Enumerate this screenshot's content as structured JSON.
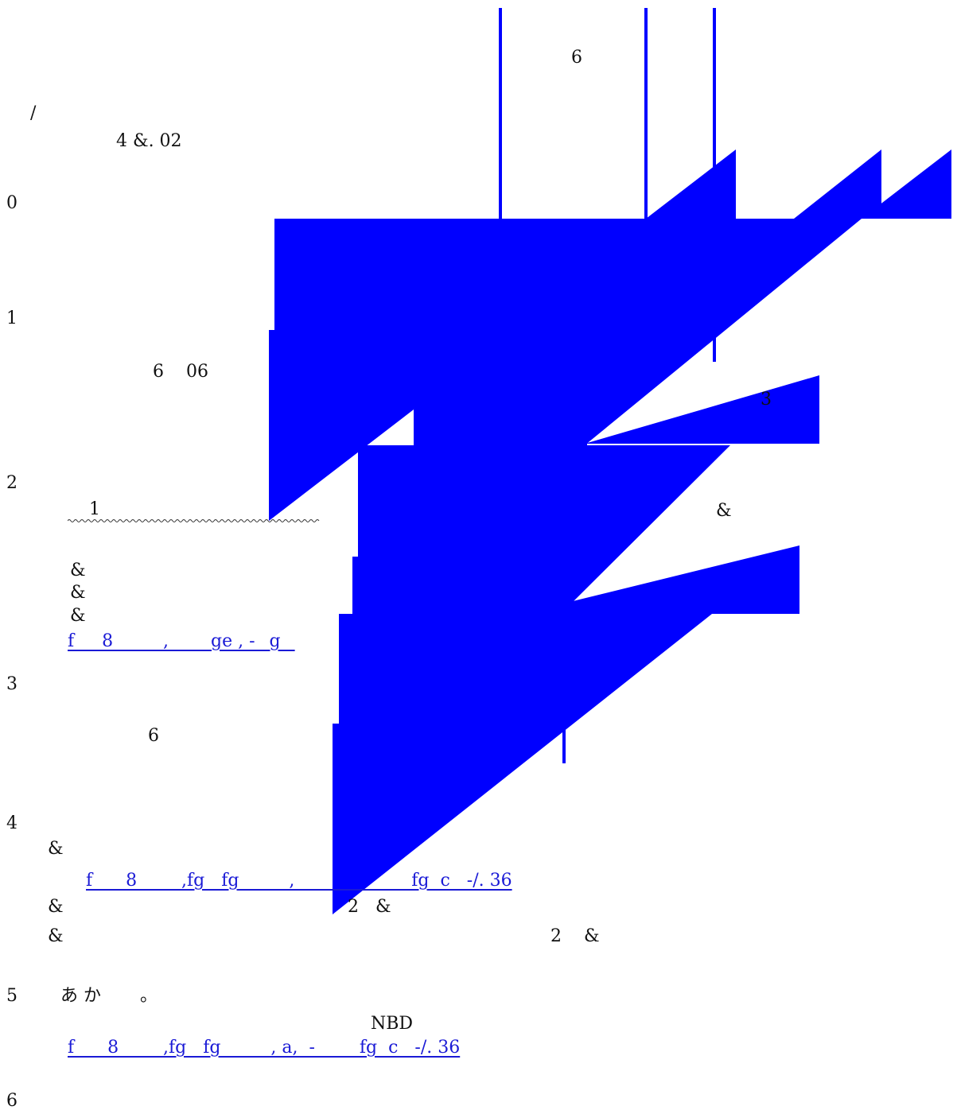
{
  "colors": {
    "shape_fill": "#0000ff",
    "link": "#1a1ad6",
    "text": "#111111",
    "background": "#ffffff"
  },
  "labels": {
    "top_6": "6",
    "slash": "/",
    "title_code": "4 &. 02",
    "marker_0": "0",
    "marker_1": "1",
    "mid_6_06": "6    06",
    "right_3": "3",
    "marker_2": "2",
    "squiggle_1": "1",
    "right_amp": "&",
    "amp_a": "&",
    "amp_b": "&",
    "amp_c": "&",
    "marker_3": "3",
    "sub_6": "6",
    "marker_4": "4",
    "amp_d": "&",
    "amp_e": "&",
    "pair_2_amp": "2   &",
    "amp_f": "&",
    "pair_2_amp_right": "2    &",
    "marker_5": "5",
    "kana": "あ か       。",
    "nbd": "NBD",
    "marker_6": "6"
  },
  "links": {
    "link_1": "f     8         ,      _ge , - _g _",
    "link_2": "f      8        ,fg   fg         ,                     fg  c   -/. 36",
    "link_3": "f      8        ,fg   fg         , a,  -        fg  c   -/. 36"
  }
}
